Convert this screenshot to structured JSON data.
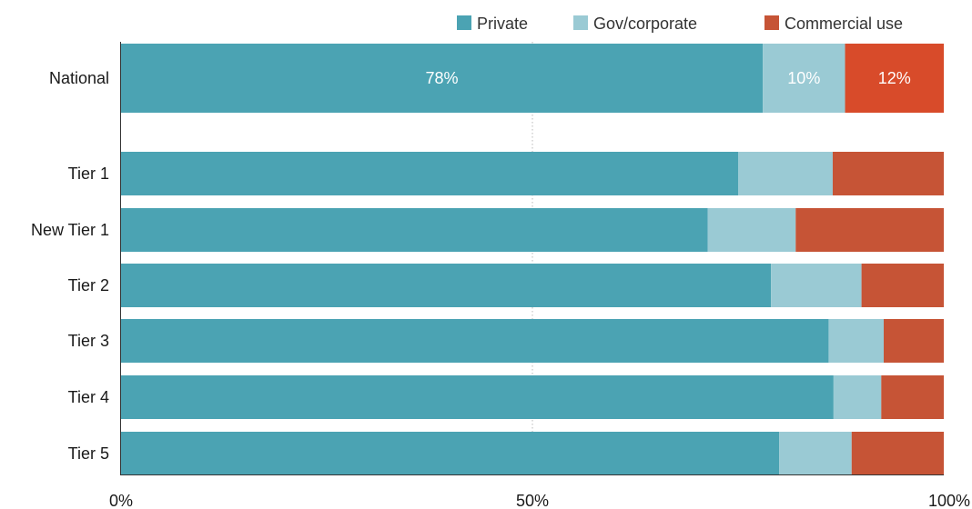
{
  "chart_data": {
    "type": "bar",
    "orientation": "horizontal",
    "stacked": true,
    "categories": [
      "National",
      "Tier 1",
      "New Tier 1",
      "Tier 2",
      "Tier 3",
      "Tier 4",
      "Tier 5"
    ],
    "series": [
      {
        "name": "Private",
        "color": "#4BA3B3",
        "values": [
          78,
          75,
          71.3,
          79,
          86,
          86.6,
          80
        ]
      },
      {
        "name": "Gov/corporate",
        "color": "#9ACAD4",
        "values": [
          10,
          11.5,
          10.7,
          11,
          6.7,
          5.8,
          8.8
        ]
      },
      {
        "name": "Commercial use",
        "color": "#C65436",
        "values": [
          12,
          13.5,
          18,
          10,
          7.3,
          7.6,
          11.2
        ]
      }
    ],
    "highlight": {
      "category": "National",
      "colors": [
        "#4BA3B3",
        "#9ACAD4",
        "#D84B2A"
      ],
      "labels": [
        "78%",
        "10%",
        "12%"
      ]
    },
    "xlim": [
      0,
      100
    ],
    "x_ticks": [
      {
        "value": 0,
        "label": "0%"
      },
      {
        "value": 50,
        "label": "50%"
      },
      {
        "value": 100,
        "label": "100%"
      }
    ],
    "gridline_values": [
      50
    ],
    "legend": {
      "position": "top-right"
    },
    "title": "",
    "xlabel": "",
    "ylabel": ""
  }
}
